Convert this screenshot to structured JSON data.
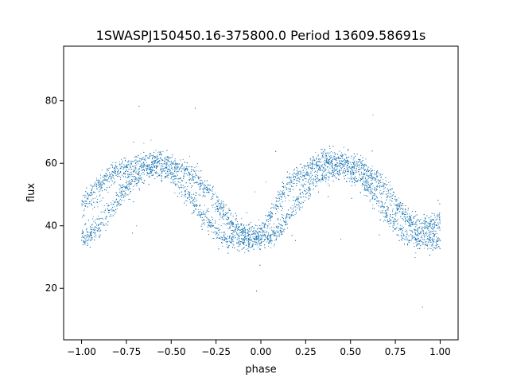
{
  "chart_data": {
    "type": "scatter",
    "title": "1SWASPJ150450.16-375800.0 Period 13609.58691s",
    "xlabel": "phase",
    "ylabel": "flux",
    "xlim": [
      -1.1,
      1.1
    ],
    "ylim": [
      3.5,
      97.5
    ],
    "xticks": [
      -1.0,
      -0.75,
      -0.5,
      -0.25,
      0.0,
      0.25,
      0.5,
      0.75,
      1.0
    ],
    "xtick_labels": [
      "−1.00",
      "−0.75",
      "−0.50",
      "−0.25",
      "0.00",
      "0.25",
      "0.50",
      "0.75",
      "1.00"
    ],
    "yticks": [
      20,
      40,
      60,
      80
    ],
    "ytick_labels": [
      "20",
      "40",
      "60",
      "80"
    ],
    "grid": false,
    "point_color": "#1f77b4",
    "series": [
      {
        "x": [
          -1.0,
          -0.95,
          -0.9,
          -0.85,
          -0.8,
          -0.75,
          -0.7,
          -0.65,
          -0.6,
          -0.55,
          -0.5,
          -0.45,
          -0.4,
          -0.35,
          -0.3,
          -0.25,
          -0.2,
          -0.15,
          -0.1,
          -0.05,
          0.0,
          0.05,
          0.1,
          0.15,
          0.2,
          0.25,
          0.3,
          0.35,
          0.4,
          0.45,
          0.5,
          0.55,
          0.6,
          0.65,
          0.7,
          0.75,
          0.8,
          0.85,
          0.9,
          0.95,
          1.0
        ],
        "y_upper": [
          46,
          51,
          54,
          56,
          58,
          59,
          60,
          61,
          61,
          61,
          60,
          59,
          57,
          55,
          52,
          48,
          44,
          40,
          38,
          37,
          38,
          43,
          49,
          53,
          56,
          58,
          60,
          61,
          61,
          61,
          60,
          59,
          57,
          55,
          52,
          48,
          44,
          41,
          40,
          40,
          42
        ],
        "y_lower": [
          36,
          37,
          40,
          44,
          48,
          52,
          55,
          57,
          58,
          58,
          56,
          53,
          49,
          45,
          41,
          38,
          36,
          35,
          35,
          35,
          35,
          36,
          38,
          42,
          47,
          51,
          54,
          56,
          57,
          58,
          57,
          55,
          52,
          48,
          44,
          40,
          37,
          36,
          35,
          35,
          35
        ]
      }
    ]
  }
}
